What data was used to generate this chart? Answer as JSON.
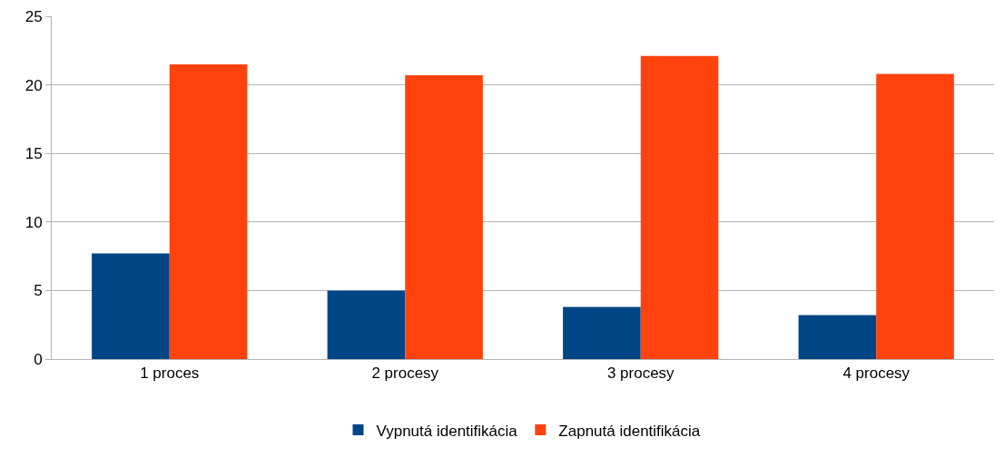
{
  "chart_data": {
    "type": "bar",
    "categories": [
      "1 proces",
      "2 procesy",
      "3 procesy",
      "4 procesy"
    ],
    "series": [
      {
        "name": "Vypnutá identifikácia",
        "color": "#004586",
        "values": [
          7.7,
          5.0,
          3.8,
          3.2
        ]
      },
      {
        "name": "Zapnutá identifikácia",
        "color": "#ff420e",
        "values": [
          21.5,
          20.7,
          22.1,
          20.8
        ]
      }
    ],
    "ylim": [
      0,
      25
    ],
    "yticks": [
      0,
      5,
      10,
      15,
      20,
      25
    ],
    "grid": "y",
    "legend": "bottom"
  }
}
